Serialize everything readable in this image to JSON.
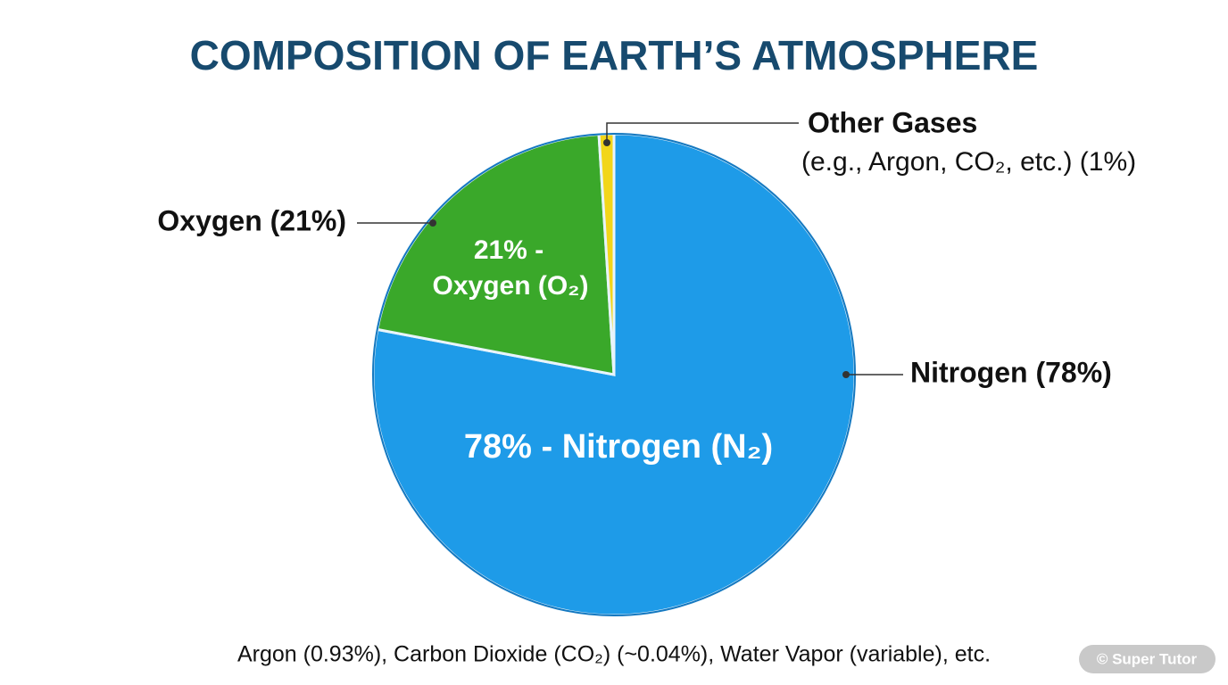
{
  "chart_data": {
    "type": "pie",
    "title": "COMPOSITION OF EARTH’S ATMOSPHERE",
    "categories": [
      "Nitrogen (78%)",
      "Oxygen (21%)",
      "Other Gases"
    ],
    "values": [
      78,
      21,
      1
    ],
    "colors": [
      "#1e9be8",
      "#3aa82a",
      "#f2d61a"
    ],
    "annotations": {
      "nitrogen_inner": "78% - Nitrogen (N₂)",
      "oxygen_inner": [
        "21% -",
        "Oxygen (O₂)"
      ],
      "other_note": "(e.g., Argon, CO₂, etc.) (1%)",
      "footnote": "Argon (0.93%), Carbon Dioxide (CO₂) (~0.04%), Water Vapor (variable), etc.",
      "watermark": "© Super Tutor"
    }
  }
}
